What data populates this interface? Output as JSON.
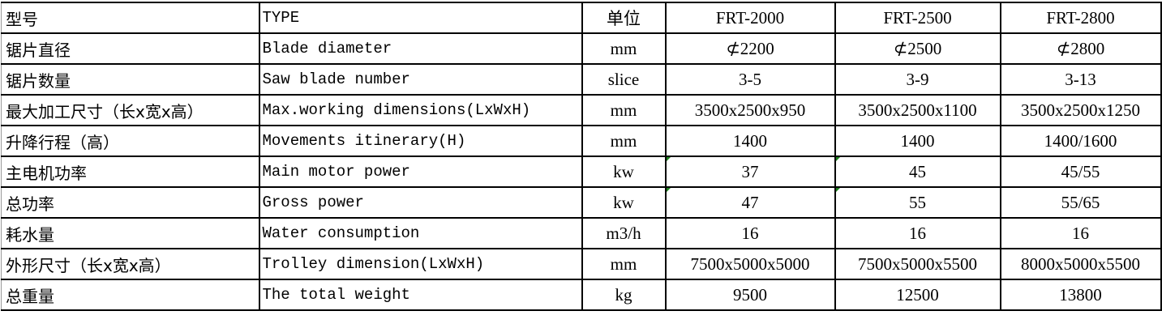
{
  "table": {
    "rows": [
      [
        "型号",
        "TYPE",
        "单位",
        "FRT-2000",
        "FRT-2500",
        "FRT-2800"
      ],
      [
        "锯片直径",
        "Blade diameter",
        "mm",
        "⊄2200",
        "⊄2500",
        "⊄2800"
      ],
      [
        "锯片数量",
        "Saw blade number",
        "slice",
        "3-5",
        "3-9",
        "3-13"
      ],
      [
        "最大加工尺寸（长x宽x高）",
        "Max.working dimensions(LxWxH)",
        "mm",
        "3500x2500x950",
        "3500x2500x1100",
        "3500x2500x1250"
      ],
      [
        "升降行程（高）",
        "Movements itinerary(H)",
        "mm",
        "1400",
        "1400",
        "1400/1600"
      ],
      [
        "主电机功率",
        "Main motor power",
        "kw",
        "37",
        "45",
        "45/55"
      ],
      [
        "总功率",
        "Gross power",
        "kw",
        "47",
        "55",
        "55/65"
      ],
      [
        "耗水量",
        "Water consumption",
        "m3/h",
        "16",
        "16",
        "16"
      ],
      [
        "外形尺寸（长x宽x高）",
        "Trolley dimension(LxWxH)",
        "mm",
        "7500x5000x5000",
        "7500x5000x5500",
        "8000x5000x5500"
      ],
      [
        "总重量",
        "The total weight",
        "kg",
        "9500",
        "12500",
        "13800"
      ]
    ],
    "indicator_color": "#1a7f1a"
  }
}
